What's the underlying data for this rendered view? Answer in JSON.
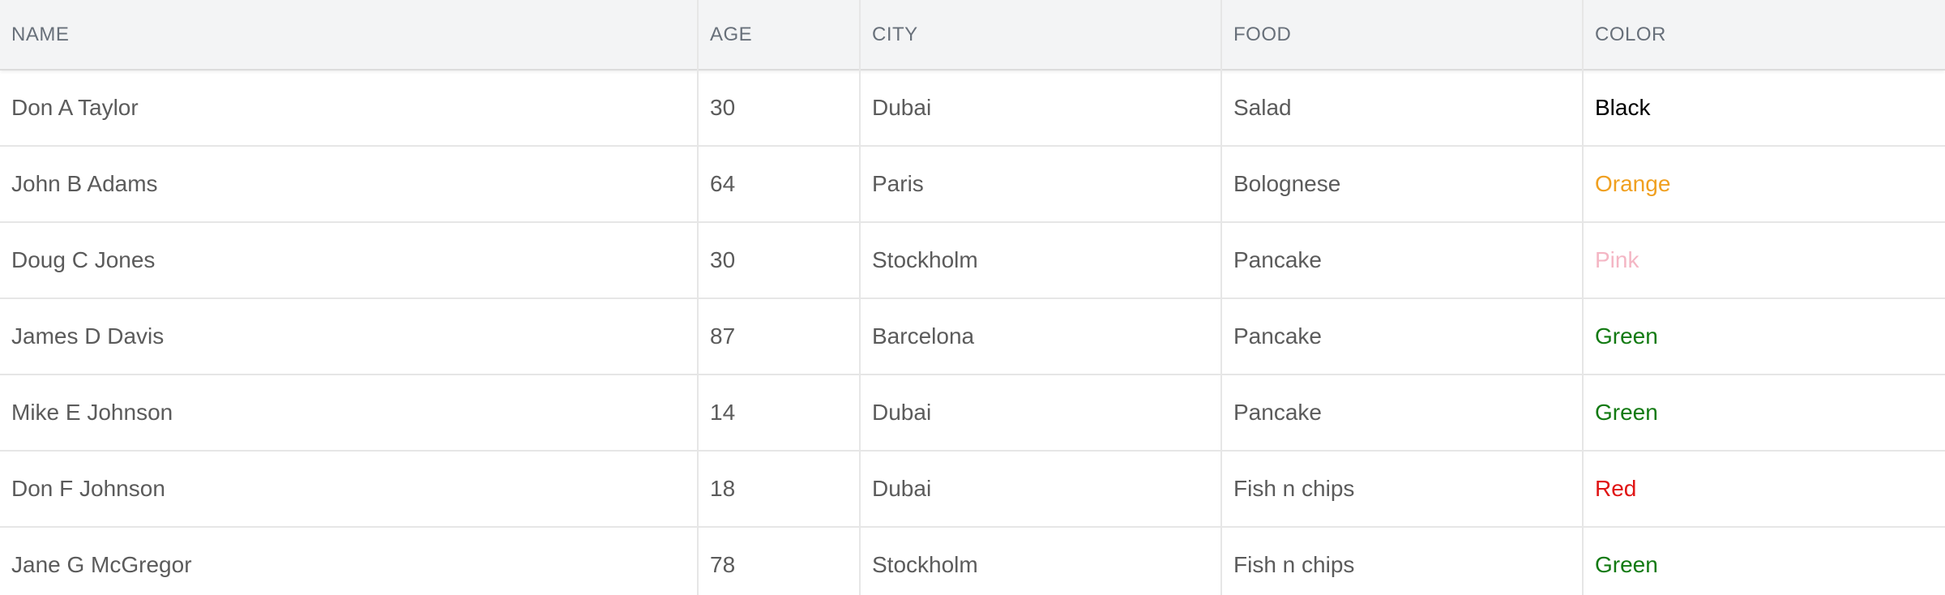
{
  "columns": {
    "name": "NAME",
    "age": "AGE",
    "city": "CITY",
    "food": "FOOD",
    "color": "COLOR"
  },
  "rows": [
    {
      "name": "Don A Taylor",
      "age": "30",
      "city": "Dubai",
      "food": "Salad",
      "color": "Black",
      "color_hex": "#000000"
    },
    {
      "name": "John B Adams",
      "age": "64",
      "city": "Paris",
      "food": "Bolognese",
      "color": "Orange",
      "color_hex": "#f0a020"
    },
    {
      "name": "Doug C Jones",
      "age": "30",
      "city": "Stockholm",
      "food": "Pancake",
      "color": "Pink",
      "color_hex": "#f4b6c4"
    },
    {
      "name": "James D Davis",
      "age": "87",
      "city": "Barcelona",
      "food": "Pancake",
      "color": "Green",
      "color_hex": "#127a12"
    },
    {
      "name": "Mike E Johnson",
      "age": "14",
      "city": "Dubai",
      "food": "Pancake",
      "color": "Green",
      "color_hex": "#127a12"
    },
    {
      "name": "Don F Johnson",
      "age": "18",
      "city": "Dubai",
      "food": "Fish n chips",
      "color": "Red",
      "color_hex": "#e01515"
    },
    {
      "name": "Jane G McGregor",
      "age": "78",
      "city": "Stockholm",
      "food": "Fish n chips",
      "color": "Green",
      "color_hex": "#127a12"
    }
  ]
}
